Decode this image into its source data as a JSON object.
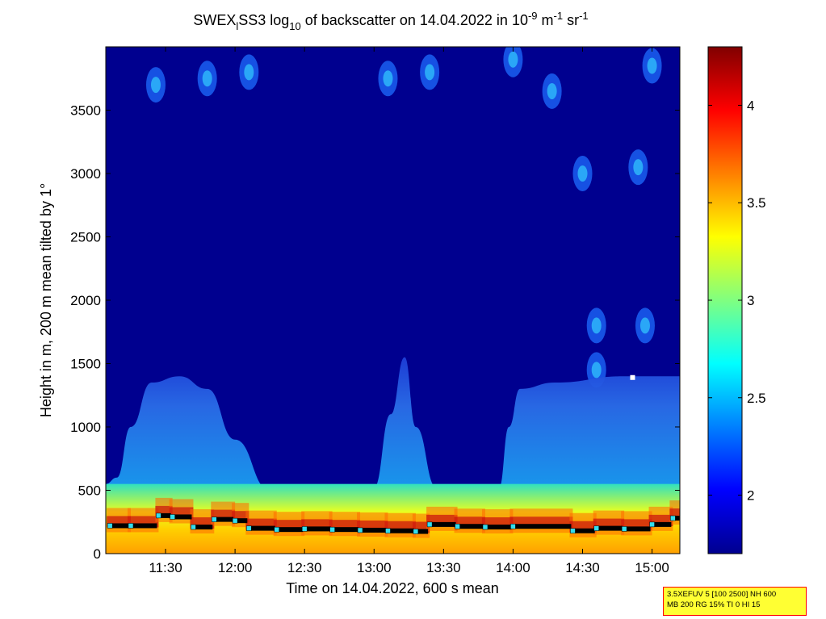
{
  "chart_data": {
    "type": "heatmap",
    "title": {
      "prefix": "SWEX",
      "sub1": "l",
      "mid1": "SS3 log",
      "sub2": "10",
      "mid2": " of backscatter on 14.04.2022 in 10",
      "sup1": "-9",
      "mid3": " m",
      "sup2": "-1",
      "mid4": " sr",
      "sup3": "-1"
    },
    "xlabel": "Time on 14.04.2022, 600 s mean",
    "ylabel": "Height in m, 200 m mean tilted by 1°",
    "xlim": [
      11.07,
      15.2
    ],
    "ylim": [
      0,
      4000
    ],
    "xticks": [
      {
        "value": 11.5,
        "label": "11:30"
      },
      {
        "value": 12.0,
        "label": "12:00"
      },
      {
        "value": 12.5,
        "label": "12:30"
      },
      {
        "value": 13.0,
        "label": "13:00"
      },
      {
        "value": 13.5,
        "label": "13:30"
      },
      {
        "value": 14.0,
        "label": "14:00"
      },
      {
        "value": 14.5,
        "label": "14:30"
      },
      {
        "value": 15.0,
        "label": "15:00"
      }
    ],
    "yticks": [
      {
        "value": 0,
        "label": "0"
      },
      {
        "value": 500,
        "label": "500"
      },
      {
        "value": 1000,
        "label": "1000"
      },
      {
        "value": 1500,
        "label": "1500"
      },
      {
        "value": 2000,
        "label": "2000"
      },
      {
        "value": 2500,
        "label": "2500"
      },
      {
        "value": 3000,
        "label": "3000"
      },
      {
        "value": 3500,
        "label": "3500"
      }
    ],
    "colorbar": {
      "range": [
        1.7,
        4.3
      ],
      "ticks": [
        {
          "value": 2,
          "label": "2"
        },
        {
          "value": 2.5,
          "label": "2.5"
        },
        {
          "value": 3,
          "label": "3"
        },
        {
          "value": 3.5,
          "label": "3.5"
        },
        {
          "value": 4,
          "label": "4"
        }
      ],
      "colormap": "jet"
    },
    "boundary_layer_top": [
      {
        "t": 11.07,
        "h": 550
      },
      {
        "t": 11.15,
        "h": 600
      },
      {
        "t": 11.25,
        "h": 1000
      },
      {
        "t": 11.4,
        "h": 1350
      },
      {
        "t": 11.6,
        "h": 1400
      },
      {
        "t": 11.8,
        "h": 1300
      },
      {
        "t": 12.0,
        "h": 900
      },
      {
        "t": 12.25,
        "h": 500
      },
      {
        "t": 12.5,
        "h": 420
      },
      {
        "t": 12.8,
        "h": 420
      },
      {
        "t": 13.0,
        "h": 520
      },
      {
        "t": 13.12,
        "h": 1100
      },
      {
        "t": 13.22,
        "h": 1550
      },
      {
        "t": 13.3,
        "h": 1000
      },
      {
        "t": 13.45,
        "h": 520
      },
      {
        "t": 13.9,
        "h": 520
      },
      {
        "t": 13.97,
        "h": 1000
      },
      {
        "t": 14.05,
        "h": 1300
      },
      {
        "t": 14.3,
        "h": 1350
      },
      {
        "t": 14.8,
        "h": 1400
      },
      {
        "t": 15.2,
        "h": 1400
      }
    ],
    "detected_layer_heights": [
      {
        "t": 11.1,
        "h": 220
      },
      {
        "t": 11.25,
        "h": 220
      },
      {
        "t": 11.45,
        "h": 300
      },
      {
        "t": 11.55,
        "h": 290
      },
      {
        "t": 11.7,
        "h": 210
      },
      {
        "t": 11.85,
        "h": 270
      },
      {
        "t": 12.0,
        "h": 260
      },
      {
        "t": 12.1,
        "h": 200
      },
      {
        "t": 12.3,
        "h": 190
      },
      {
        "t": 12.5,
        "h": 195
      },
      {
        "t": 12.7,
        "h": 190
      },
      {
        "t": 12.9,
        "h": 185
      },
      {
        "t": 13.1,
        "h": 180
      },
      {
        "t": 13.3,
        "h": 175
      },
      {
        "t": 13.4,
        "h": 230
      },
      {
        "t": 13.6,
        "h": 215
      },
      {
        "t": 13.8,
        "h": 210
      },
      {
        "t": 14.0,
        "h": 215
      },
      {
        "t": 14.43,
        "h": 180
      },
      {
        "t": 14.6,
        "h": 200
      },
      {
        "t": 14.8,
        "h": 195
      },
      {
        "t": 15.0,
        "h": 230
      },
      {
        "t": 15.15,
        "h": 280
      }
    ],
    "cloud_patches": [
      {
        "t": 11.43,
        "h": 3700
      },
      {
        "t": 11.8,
        "h": 3750
      },
      {
        "t": 12.1,
        "h": 3800
      },
      {
        "t": 13.1,
        "h": 3750
      },
      {
        "t": 13.4,
        "h": 3800
      },
      {
        "t": 14.0,
        "h": 3900
      },
      {
        "t": 14.28,
        "h": 3650
      },
      {
        "t": 14.5,
        "h": 3000
      },
      {
        "t": 14.9,
        "h": 3050
      },
      {
        "t": 15.0,
        "h": 3850
      },
      {
        "t": 14.6,
        "h": 1800
      },
      {
        "t": 14.95,
        "h": 1800
      },
      {
        "t": 14.6,
        "h": 1450
      }
    ],
    "marker_point": {
      "t": 14.86,
      "h": 1390
    }
  },
  "info_box": {
    "line1": "3.5XEFUV 5 [100 2500] NH 600",
    "line2": "MB 200 RG 15% TI 0 HI 15"
  }
}
